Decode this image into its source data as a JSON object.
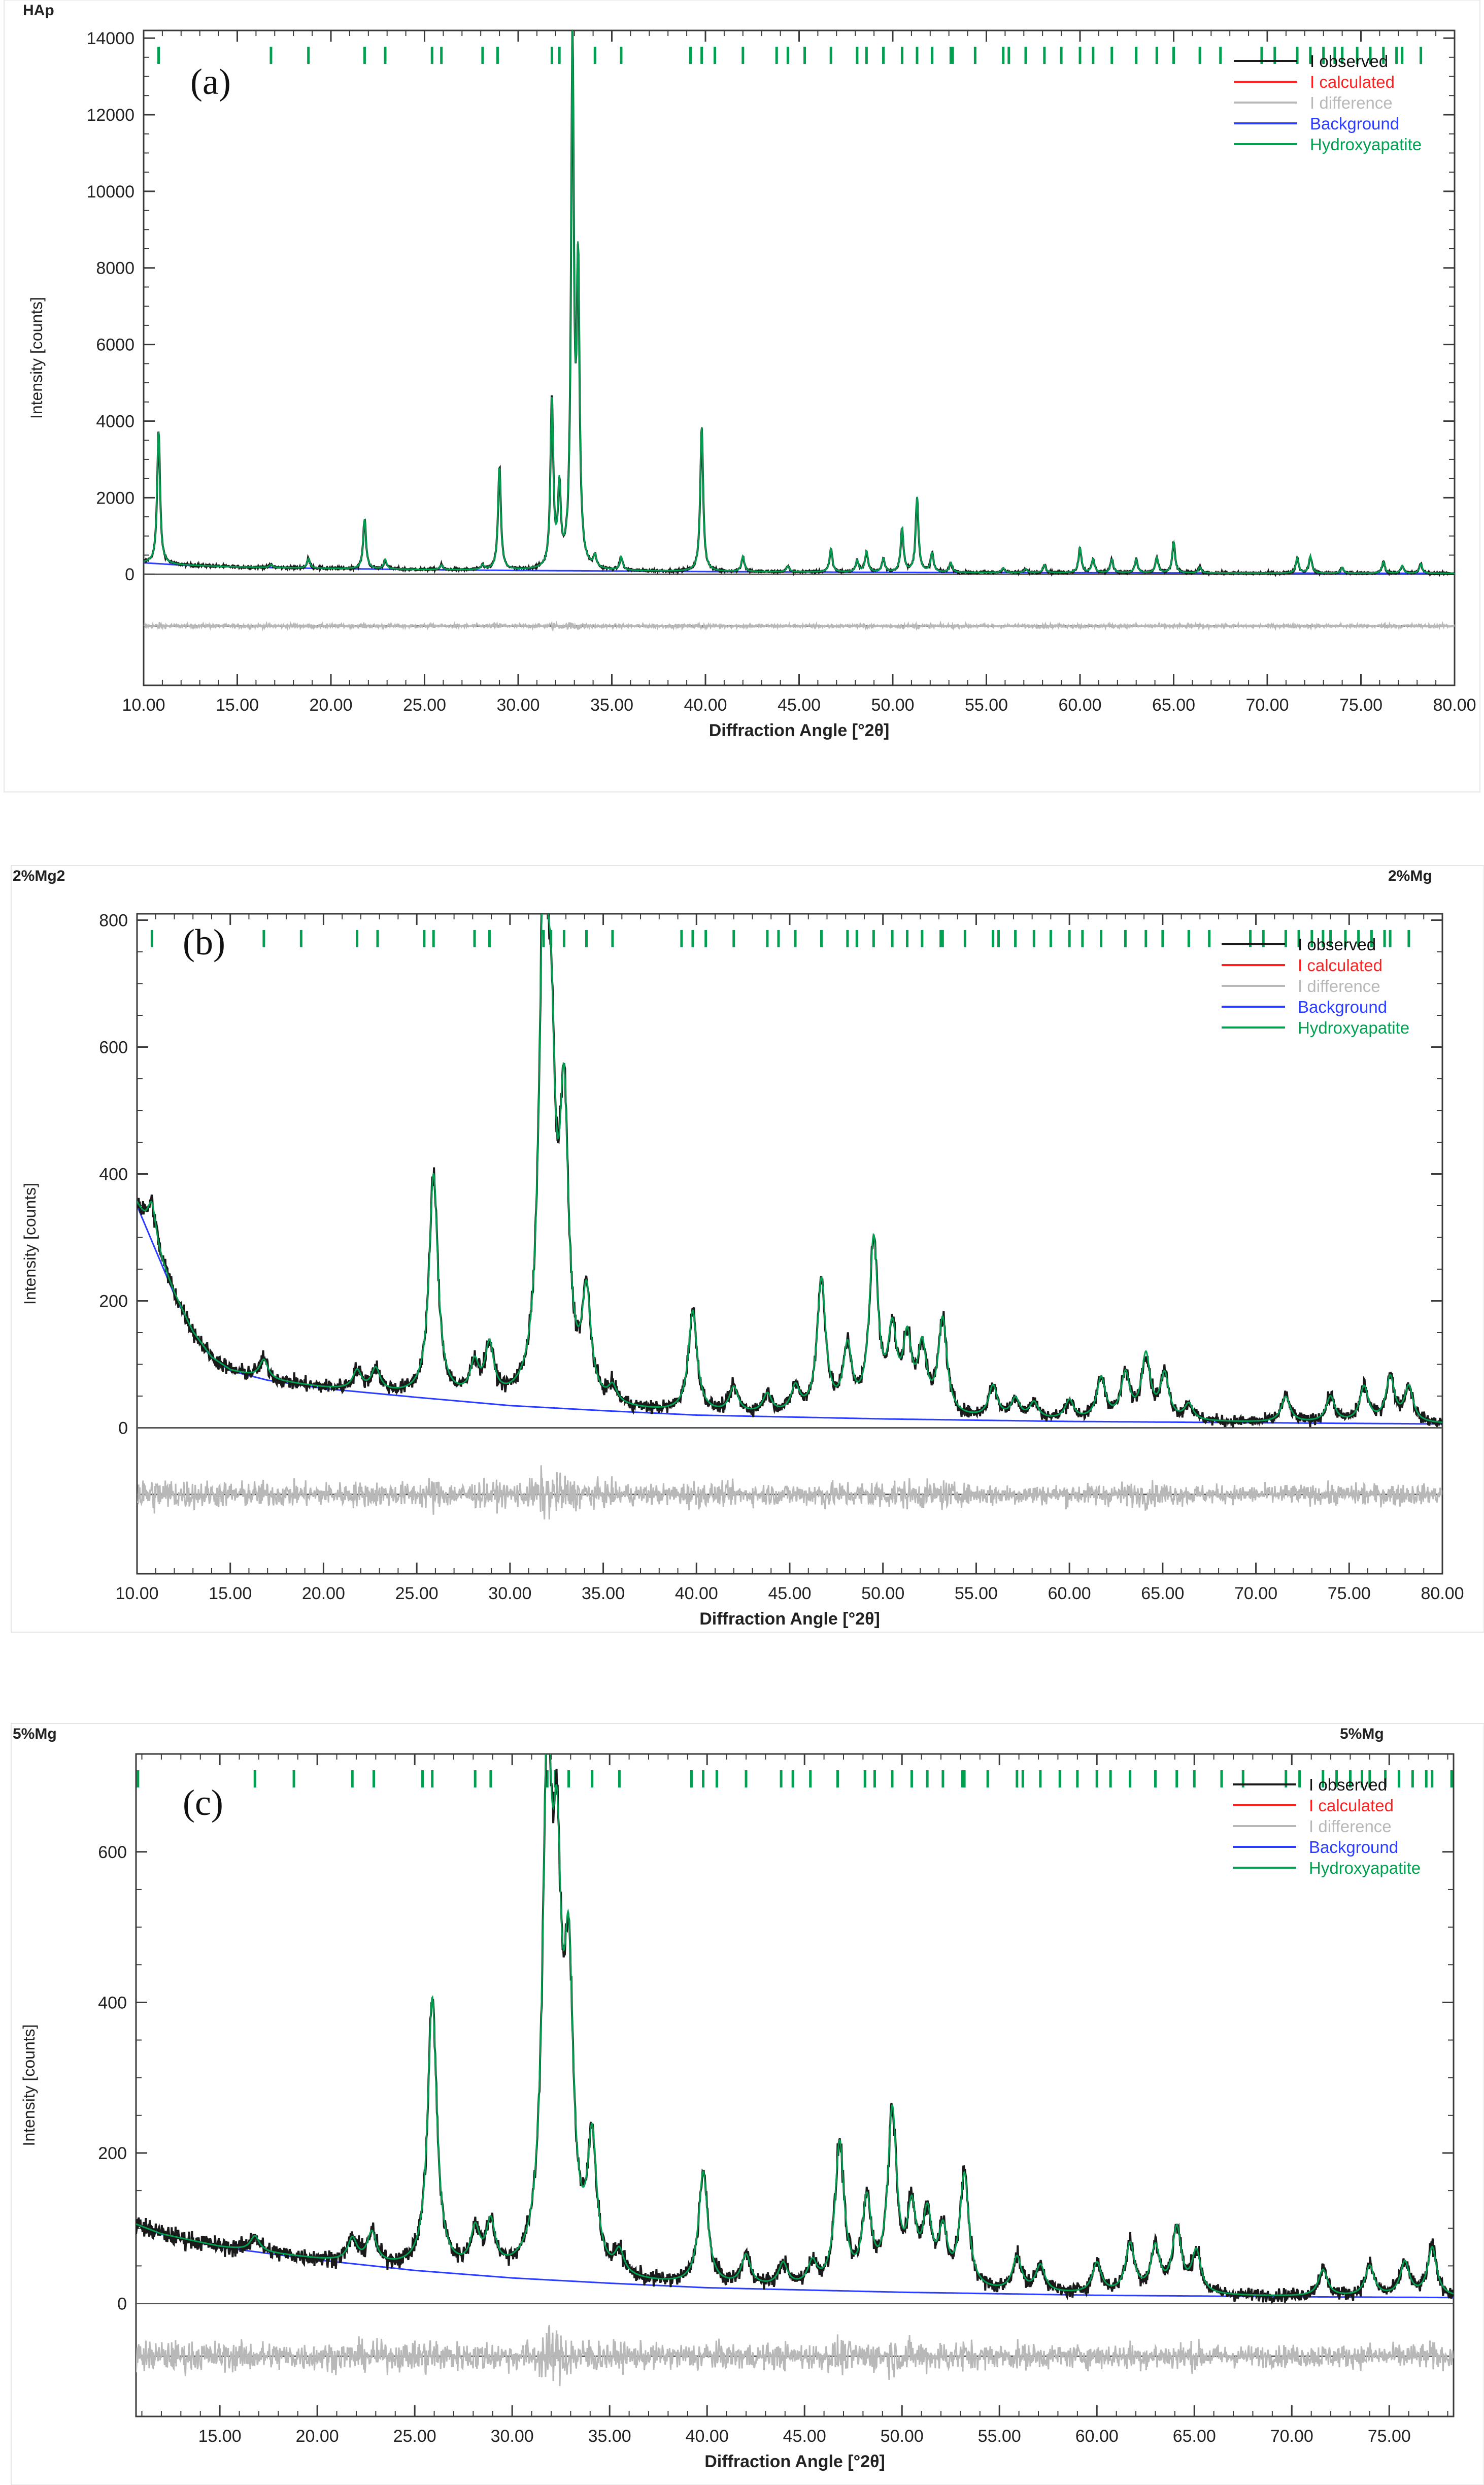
{
  "colors": {
    "observed": "#1a1a1a",
    "calculated": "#ff2020",
    "difference": "#b8b8b8",
    "background": "#2a3cff",
    "hydroxyapatite": "#00a050",
    "axis": "#3a3a3a",
    "zero_line": "#555555"
  },
  "chart_data": [
    {
      "type": "line",
      "corner_left": "HAp",
      "corner_right": "",
      "panel_label": "(a)",
      "xlabel": "Diffraction Angle [°2θ]",
      "ylabel": "Intensity [counts]",
      "xlim": [
        10,
        80
      ],
      "ylim": [
        -2900,
        14200
      ],
      "yticks": [
        0,
        2000,
        4000,
        6000,
        8000,
        10000,
        12000,
        14000
      ],
      "ytick_labels": [
        "0",
        "2000",
        "4000",
        "6000",
        "8000",
        "10000",
        "12000",
        "14000"
      ],
      "xticks": [
        10,
        15,
        20,
        25,
        30,
        35,
        40,
        45,
        50,
        55,
        60,
        65,
        70,
        75,
        80
      ],
      "xtick_labels": [
        "10.00",
        "15.00",
        "20.00",
        "25.00",
        "30.00",
        "35.00",
        "40.00",
        "45.00",
        "50.00",
        "55.00",
        "60.00",
        "65.00",
        "70.00",
        "75.00",
        "80.00"
      ],
      "difference_offset": -1350,
      "legend": [
        "I observed",
        "I calculated",
        "I difference",
        "Background",
        "Hydroxyapatite"
      ],
      "background_curve": [
        [
          10,
          300
        ],
        [
          12,
          240
        ],
        [
          15,
          190
        ],
        [
          20,
          150
        ],
        [
          25,
          120
        ],
        [
          30,
          100
        ],
        [
          40,
          70
        ],
        [
          50,
          50
        ],
        [
          60,
          40
        ],
        [
          70,
          30
        ],
        [
          80,
          25
        ]
      ],
      "peaks": [
        {
          "x": 10.8,
          "y": 3500
        },
        {
          "x": 16.8,
          "y": 80
        },
        {
          "x": 18.8,
          "y": 250
        },
        {
          "x": 21.8,
          "y": 1300
        },
        {
          "x": 22.9,
          "y": 250
        },
        {
          "x": 25.9,
          "y": 120
        },
        {
          "x": 28.1,
          "y": 120
        },
        {
          "x": 29.0,
          "y": 2700
        },
        {
          "x": 31.8,
          "y": 4400
        },
        {
          "x": 32.2,
          "y": 2000
        },
        {
          "x": 32.9,
          "y": 13500
        },
        {
          "x": 33.2,
          "y": 7500
        },
        {
          "x": 34.1,
          "y": 300
        },
        {
          "x": 35.5,
          "y": 350
        },
        {
          "x": 39.8,
          "y": 3800
        },
        {
          "x": 42.0,
          "y": 400
        },
        {
          "x": 44.4,
          "y": 150
        },
        {
          "x": 46.7,
          "y": 600
        },
        {
          "x": 48.1,
          "y": 300
        },
        {
          "x": 48.6,
          "y": 550
        },
        {
          "x": 49.5,
          "y": 350
        },
        {
          "x": 50.5,
          "y": 1150
        },
        {
          "x": 51.3,
          "y": 1950
        },
        {
          "x": 52.1,
          "y": 500
        },
        {
          "x": 53.1,
          "y": 250
        },
        {
          "x": 55.9,
          "y": 120
        },
        {
          "x": 57.1,
          "y": 100
        },
        {
          "x": 58.1,
          "y": 200
        },
        {
          "x": 60.0,
          "y": 650
        },
        {
          "x": 60.7,
          "y": 350
        },
        {
          "x": 61.7,
          "y": 350
        },
        {
          "x": 63.0,
          "y": 350
        },
        {
          "x": 64.1,
          "y": 400
        },
        {
          "x": 65.0,
          "y": 800
        },
        {
          "x": 66.4,
          "y": 150
        },
        {
          "x": 71.6,
          "y": 400
        },
        {
          "x": 72.3,
          "y": 450
        },
        {
          "x": 74.0,
          "y": 150
        },
        {
          "x": 76.2,
          "y": 300
        },
        {
          "x": 77.2,
          "y": 200
        },
        {
          "x": 78.2,
          "y": 250
        }
      ],
      "reflection_ticks": [
        10.8,
        16.8,
        18.8,
        21.8,
        22.9,
        25.4,
        25.9,
        28.1,
        28.9,
        31.8,
        32.2,
        32.9,
        34.1,
        35.5,
        39.2,
        39.8,
        40.5,
        42.0,
        43.8,
        44.4,
        45.3,
        46.7,
        48.1,
        48.6,
        49.5,
        50.5,
        51.3,
        52.1,
        53.1,
        53.2,
        54.4,
        55.9,
        56.2,
        57.1,
        58.1,
        59.0,
        60.0,
        60.7,
        61.7,
        63.0,
        64.1,
        65.0,
        66.4,
        67.5,
        69.7,
        70.4,
        71.6,
        72.3,
        73.0,
        73.6,
        74.0,
        74.8,
        75.5,
        76.2,
        76.9,
        77.2,
        78.2
      ]
    },
    {
      "type": "line",
      "corner_left": "2%Mg2",
      "corner_right": "2%Mg",
      "panel_label": "(b)",
      "xlabel": "Diffraction Angle [°2θ]",
      "ylabel": "Intensity [counts]",
      "xlim": [
        10,
        80
      ],
      "ylim": [
        -230,
        810
      ],
      "yticks": [
        0,
        200,
        400,
        600,
        800
      ],
      "ytick_labels": [
        "0",
        "200",
        "400",
        "600",
        "800"
      ],
      "xticks": [
        10,
        15,
        20,
        25,
        30,
        35,
        40,
        45,
        50,
        55,
        60,
        65,
        70,
        75,
        80
      ],
      "xtick_labels": [
        "10.00",
        "15.00",
        "20.00",
        "25.00",
        "30.00",
        "35.00",
        "40.00",
        "45.00",
        "50.00",
        "55.00",
        "60.00",
        "65.00",
        "70.00",
        "75.00",
        "80.00"
      ],
      "difference_offset": -105,
      "legend": [
        "I observed",
        "I calculated",
        "I difference",
        "Background",
        "Hydroxyapatite"
      ],
      "background_curve": [
        [
          10,
          350
        ],
        [
          11,
          280
        ],
        [
          12,
          210
        ],
        [
          13,
          150
        ],
        [
          14,
          110
        ],
        [
          15,
          90
        ],
        [
          17,
          75
        ],
        [
          20,
          62
        ],
        [
          25,
          48
        ],
        [
          30,
          35
        ],
        [
          35,
          27
        ],
        [
          40,
          20
        ],
        [
          50,
          14
        ],
        [
          60,
          10
        ],
        [
          70,
          8
        ],
        [
          80,
          6
        ]
      ],
      "peaks": [
        {
          "x": 10.8,
          "y": 60
        },
        {
          "x": 16.8,
          "y": 30
        },
        {
          "x": 21.8,
          "y": 30
        },
        {
          "x": 22.8,
          "y": 35
        },
        {
          "x": 25.9,
          "y": 350
        },
        {
          "x": 28.1,
          "y": 50
        },
        {
          "x": 28.9,
          "y": 80
        },
        {
          "x": 31.8,
          "y": 730
        },
        {
          "x": 32.2,
          "y": 420
        },
        {
          "x": 32.9,
          "y": 430
        },
        {
          "x": 34.1,
          "y": 160
        },
        {
          "x": 35.5,
          "y": 25
        },
        {
          "x": 39.8,
          "y": 160
        },
        {
          "x": 42.0,
          "y": 40
        },
        {
          "x": 43.8,
          "y": 30
        },
        {
          "x": 45.3,
          "y": 40
        },
        {
          "x": 46.7,
          "y": 210
        },
        {
          "x": 48.1,
          "y": 100
        },
        {
          "x": 49.5,
          "y": 270
        },
        {
          "x": 50.5,
          "y": 120
        },
        {
          "x": 51.3,
          "y": 110
        },
        {
          "x": 52.1,
          "y": 100
        },
        {
          "x": 53.2,
          "y": 150
        },
        {
          "x": 55.9,
          "y": 50
        },
        {
          "x": 57.1,
          "y": 30
        },
        {
          "x": 58.1,
          "y": 25
        },
        {
          "x": 60.0,
          "y": 30
        },
        {
          "x": 61.7,
          "y": 65
        },
        {
          "x": 63.0,
          "y": 70
        },
        {
          "x": 64.1,
          "y": 100
        },
        {
          "x": 65.1,
          "y": 70
        },
        {
          "x": 66.4,
          "y": 25
        },
        {
          "x": 71.6,
          "y": 40
        },
        {
          "x": 74.0,
          "y": 40
        },
        {
          "x": 75.8,
          "y": 55
        },
        {
          "x": 77.2,
          "y": 70
        },
        {
          "x": 78.2,
          "y": 55
        }
      ],
      "reflection_ticks": [
        10.8,
        16.8,
        18.8,
        21.8,
        22.9,
        25.4,
        25.9,
        28.1,
        28.9,
        31.8,
        32.2,
        32.9,
        34.1,
        35.5,
        39.2,
        39.8,
        40.5,
        42.0,
        43.8,
        44.4,
        45.3,
        46.7,
        48.1,
        48.6,
        49.5,
        50.5,
        51.3,
        52.1,
        53.1,
        53.2,
        54.4,
        55.9,
        56.2,
        57.1,
        58.1,
        59.0,
        60.0,
        60.7,
        61.7,
        63.0,
        64.1,
        65.0,
        66.4,
        67.5,
        69.7,
        70.4,
        71.6,
        72.3,
        73.0,
        73.6,
        74.0,
        74.8,
        75.5,
        76.2,
        76.9,
        77.2,
        78.2
      ]
    },
    {
      "type": "line",
      "corner_left": "5%Mg",
      "corner_right": "5%Mg",
      "panel_label": "(c)",
      "xlabel": "Diffraction Angle [°2θ]",
      "ylabel": "Intensity [counts]",
      "xlim": [
        10.7,
        78.3
      ],
      "ylim": [
        -150,
        730
      ],
      "yticks": [
        0,
        200,
        400,
        600
      ],
      "ytick_labels": [
        "0",
        "200",
        "400",
        "600"
      ],
      "xticks": [
        15,
        20,
        25,
        30,
        35,
        40,
        45,
        50,
        55,
        60,
        65,
        70,
        75
      ],
      "xtick_labels": [
        "15.00",
        "20.00",
        "25.00",
        "30.00",
        "35.00",
        "40.00",
        "45.00",
        "50.00",
        "55.00",
        "60.00",
        "65.00",
        "70.00",
        "75.00"
      ],
      "difference_offset": -70,
      "legend": [
        "I observed",
        "I calculated",
        "I difference",
        "Background",
        "Hydroxyapatite"
      ],
      "background_curve": [
        [
          10.7,
          105
        ],
        [
          12,
          92
        ],
        [
          15,
          75
        ],
        [
          20,
          58
        ],
        [
          25,
          44
        ],
        [
          30,
          34
        ],
        [
          35,
          27
        ],
        [
          40,
          21
        ],
        [
          50,
          15
        ],
        [
          60,
          11
        ],
        [
          70,
          9
        ],
        [
          78.3,
          8
        ]
      ],
      "peaks": [
        {
          "x": 16.8,
          "y": 20
        },
        {
          "x": 21.8,
          "y": 30
        },
        {
          "x": 22.8,
          "y": 40
        },
        {
          "x": 25.9,
          "y": 360
        },
        {
          "x": 28.1,
          "y": 50
        },
        {
          "x": 28.9,
          "y": 60
        },
        {
          "x": 31.8,
          "y": 640
        },
        {
          "x": 32.3,
          "y": 430
        },
        {
          "x": 32.9,
          "y": 360
        },
        {
          "x": 34.1,
          "y": 170
        },
        {
          "x": 35.5,
          "y": 30
        },
        {
          "x": 39.8,
          "y": 150
        },
        {
          "x": 42.0,
          "y": 40
        },
        {
          "x": 43.9,
          "y": 30
        },
        {
          "x": 45.4,
          "y": 30
        },
        {
          "x": 46.8,
          "y": 190
        },
        {
          "x": 48.2,
          "y": 110
        },
        {
          "x": 49.5,
          "y": 230
        },
        {
          "x": 50.5,
          "y": 95
        },
        {
          "x": 51.3,
          "y": 90
        },
        {
          "x": 52.1,
          "y": 70
        },
        {
          "x": 53.2,
          "y": 150
        },
        {
          "x": 55.9,
          "y": 45
        },
        {
          "x": 57.1,
          "y": 35
        },
        {
          "x": 60.0,
          "y": 40
        },
        {
          "x": 61.7,
          "y": 65
        },
        {
          "x": 63.0,
          "y": 60
        },
        {
          "x": 64.1,
          "y": 85
        },
        {
          "x": 65.1,
          "y": 55
        },
        {
          "x": 71.6,
          "y": 35
        },
        {
          "x": 74.0,
          "y": 40
        },
        {
          "x": 75.8,
          "y": 45
        },
        {
          "x": 77.2,
          "y": 65
        }
      ],
      "reflection_ticks": [
        10.8,
        16.8,
        18.8,
        21.8,
        22.9,
        25.4,
        25.9,
        28.1,
        28.9,
        31.8,
        32.2,
        32.9,
        34.1,
        35.5,
        39.2,
        39.8,
        40.5,
        42.0,
        43.8,
        44.4,
        45.3,
        46.7,
        48.1,
        48.6,
        49.5,
        50.5,
        51.3,
        52.1,
        53.1,
        53.2,
        54.4,
        55.9,
        56.2,
        57.1,
        58.1,
        59.0,
        60.0,
        60.7,
        61.7,
        63.0,
        64.1,
        65.0,
        66.4,
        67.5,
        69.7,
        70.4,
        71.6,
        72.3,
        73.0,
        73.6,
        74.0,
        74.8,
        75.5,
        76.2,
        76.9,
        77.2,
        78.2
      ]
    }
  ]
}
